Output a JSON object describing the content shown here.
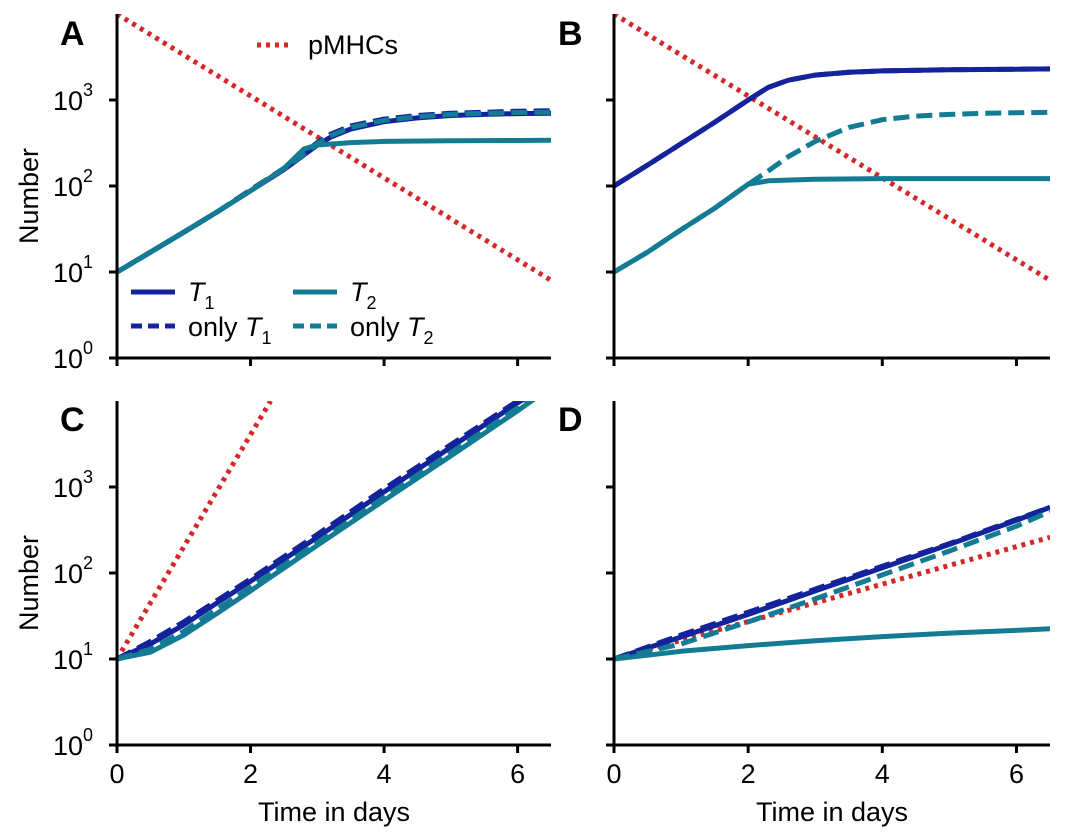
{
  "colors": {
    "T1": "#13239b",
    "T2": "#137b94",
    "pMHC": "#d62728",
    "axis": "#000000"
  },
  "legend": {
    "pmhc": "pMHCs",
    "t1": "T",
    "t1_sub": "1",
    "t2": "T",
    "t2_sub": "2",
    "only_t1_prefix": "only ",
    "only_t1": "T",
    "only_t1_sub": "1",
    "only_t2_prefix": "only ",
    "only_t2": "T",
    "only_t2_sub": "2"
  },
  "axes": {
    "xlabel": "Time in days",
    "ylabel": "Number",
    "y_ticks": [
      {
        "base": "10",
        "exp": "0",
        "value": 1
      },
      {
        "base": "10",
        "exp": "1",
        "value": 10
      },
      {
        "base": "10",
        "exp": "2",
        "value": 100
      },
      {
        "base": "10",
        "exp": "3",
        "value": 1000
      }
    ],
    "x_ticks": [
      {
        "label": "0",
        "value": 0
      },
      {
        "label": "2",
        "value": 2
      },
      {
        "label": "4",
        "value": 4
      },
      {
        "label": "6",
        "value": 6
      }
    ]
  },
  "chart_data": [
    {
      "panel": "A",
      "type": "line",
      "xlim": [
        0,
        6.5
      ],
      "ylim": [
        1,
        10000
      ],
      "yscale": "log",
      "grid": false,
      "legend_placement": "lower-left and top-center",
      "series": [
        {
          "name": "pMHCs",
          "key": "pMHC",
          "style": "dotted",
          "x": [
            0,
            6.5
          ],
          "y": [
            10000,
            8
          ]
        },
        {
          "name": "only T1",
          "key": "T1",
          "style": "dashed",
          "x": [
            0,
            0.5,
            1,
            1.5,
            2,
            2.5,
            2.8,
            3.0,
            3.2,
            3.5,
            4,
            4.5,
            5,
            5.5,
            6,
            6.5
          ],
          "y": [
            10,
            17,
            29,
            50,
            90,
            160,
            240,
            320,
            400,
            500,
            600,
            660,
            700,
            720,
            740,
            750
          ]
        },
        {
          "name": "T1",
          "key": "T1",
          "style": "solid",
          "x": [
            0,
            0.5,
            1,
            1.5,
            2,
            2.5,
            2.8,
            3.0,
            3.2,
            3.5,
            4,
            4.5,
            5,
            5.5,
            6,
            6.5
          ],
          "y": [
            10,
            17,
            29,
            50,
            88,
            155,
            230,
            300,
            370,
            460,
            560,
            620,
            660,
            680,
            695,
            700
          ]
        },
        {
          "name": "only T2",
          "key": "T2",
          "style": "dashed",
          "x": [
            0,
            0.5,
            1,
            1.5,
            2,
            2.5,
            2.8,
            3.0,
            3.2,
            3.5,
            4,
            4.5,
            5,
            5.5,
            6,
            6.5
          ],
          "y": [
            10,
            17,
            29,
            50,
            89,
            158,
            235,
            310,
            385,
            480,
            580,
            640,
            680,
            700,
            715,
            720
          ]
        },
        {
          "name": "T2",
          "key": "T2",
          "style": "solid",
          "x": [
            0,
            0.5,
            1,
            1.5,
            2,
            2.5,
            2.8,
            3.0,
            3.5,
            4,
            5,
            6,
            6.5
          ],
          "y": [
            10,
            17,
            29,
            50,
            88,
            160,
            270,
            300,
            320,
            330,
            335,
            338,
            340
          ]
        }
      ]
    },
    {
      "panel": "B",
      "type": "line",
      "xlim": [
        0,
        6.5
      ],
      "ylim": [
        1,
        10000
      ],
      "yscale": "log",
      "grid": false,
      "series": [
        {
          "name": "pMHCs",
          "key": "pMHC",
          "style": "dotted",
          "x": [
            0,
            6.5
          ],
          "y": [
            10000,
            8
          ]
        },
        {
          "name": "only T1",
          "key": "T1",
          "style": "dashed",
          "x": [
            0,
            0.5,
            1,
            1.5,
            2,
            2.3,
            2.6,
            3,
            3.5,
            4,
            5,
            6,
            6.5
          ],
          "y": [
            100,
            175,
            310,
            550,
            1000,
            1400,
            1700,
            1950,
            2100,
            2180,
            2250,
            2280,
            2300
          ]
        },
        {
          "name": "T1",
          "key": "T1",
          "style": "solid",
          "x": [
            0,
            0.5,
            1,
            1.5,
            2,
            2.3,
            2.6,
            3,
            3.5,
            4,
            5,
            6,
            6.5
          ],
          "y": [
            100,
            175,
            310,
            550,
            1000,
            1400,
            1700,
            1950,
            2100,
            2180,
            2250,
            2280,
            2300
          ]
        },
        {
          "name": "only T2",
          "key": "T2",
          "style": "dashed",
          "x": [
            0,
            0.5,
            1,
            1.5,
            2,
            2.3,
            2.6,
            3,
            3.5,
            4,
            4.5,
            5,
            5.5,
            6,
            6.5
          ],
          "y": [
            10,
            17,
            31,
            55,
            105,
            150,
            220,
            330,
            480,
            590,
            650,
            680,
            700,
            710,
            720
          ]
        },
        {
          "name": "T2",
          "key": "T2",
          "style": "solid",
          "x": [
            0,
            0.5,
            1,
            1.5,
            2,
            2.3,
            3,
            4,
            5,
            6,
            6.5
          ],
          "y": [
            10,
            17,
            31,
            55,
            105,
            115,
            120,
            122,
            122,
            122,
            122
          ]
        }
      ]
    },
    {
      "panel": "C",
      "type": "line",
      "xlim": [
        0,
        6.5
      ],
      "ylim": [
        1,
        10000
      ],
      "yscale": "log",
      "grid": false,
      "series": [
        {
          "name": "pMHCs",
          "key": "pMHC",
          "style": "dotted",
          "x": [
            0,
            2.3
          ],
          "y": [
            10,
            10000
          ]
        },
        {
          "name": "only T1",
          "key": "T1",
          "style": "dashed",
          "x": [
            0,
            0.5,
            1,
            1.5,
            2,
            3,
            4,
            5,
            6,
            6.2
          ],
          "y": [
            10,
            16,
            27,
            48,
            85,
            280,
            950,
            3100,
            10000,
            12500
          ]
        },
        {
          "name": "T1",
          "key": "T1",
          "style": "solid",
          "x": [
            0,
            0.5,
            1,
            1.5,
            2,
            3,
            4,
            5,
            6,
            6.25
          ],
          "y": [
            10,
            15,
            25,
            45,
            80,
            260,
            880,
            2900,
            9500,
            12500
          ]
        },
        {
          "name": "only T2",
          "key": "T2",
          "style": "dashed",
          "x": [
            0,
            0.5,
            1,
            1.5,
            2,
            3,
            4,
            5,
            6,
            6.3
          ],
          "y": [
            10,
            13,
            21,
            38,
            68,
            225,
            760,
            2500,
            8300,
            12000
          ]
        },
        {
          "name": "T2",
          "key": "T2",
          "style": "solid",
          "x": [
            0,
            0.5,
            1,
            1.5,
            2,
            3,
            4,
            5,
            6,
            6.35
          ],
          "y": [
            10,
            12,
            19,
            34,
            62,
            210,
            700,
            2300,
            7700,
            12000
          ]
        }
      ]
    },
    {
      "panel": "D",
      "type": "line",
      "xlim": [
        0,
        6.5
      ],
      "ylim": [
        1,
        10000
      ],
      "yscale": "log",
      "grid": false,
      "series": [
        {
          "name": "pMHCs",
          "key": "pMHC",
          "style": "dotted",
          "x": [
            0,
            6.5
          ],
          "y": [
            10,
            260
          ]
        },
        {
          "name": "only T1",
          "key": "T1",
          "style": "dashed",
          "x": [
            0,
            1,
            2,
            3,
            4,
            5,
            6,
            6.5
          ],
          "y": [
            10,
            19,
            35,
            65,
            120,
            220,
            420,
            580
          ]
        },
        {
          "name": "T1",
          "key": "T1",
          "style": "solid",
          "x": [
            0,
            1,
            2,
            3,
            4,
            5,
            6,
            6.5
          ],
          "y": [
            10,
            18,
            33,
            62,
            115,
            215,
            410,
            580
          ]
        },
        {
          "name": "only T2",
          "key": "T2",
          "style": "dashed",
          "x": [
            0,
            1,
            2,
            3,
            4,
            5,
            6,
            6.5
          ],
          "y": [
            10,
            15,
            27,
            50,
            95,
            180,
            350,
            520
          ]
        },
        {
          "name": "T2",
          "key": "T2",
          "style": "solid",
          "x": [
            0,
            1,
            2,
            3,
            4,
            5,
            6,
            6.5
          ],
          "y": [
            10,
            12.3,
            14.3,
            16.3,
            18.2,
            20,
            21.5,
            22.5
          ]
        }
      ]
    }
  ]
}
